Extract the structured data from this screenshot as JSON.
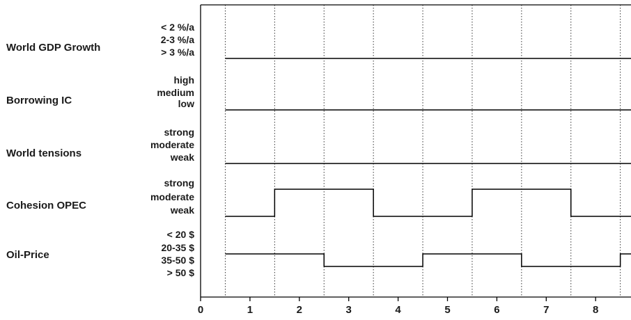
{
  "chart_data": {
    "type": "line",
    "title": "",
    "xlabel": "",
    "ylabel": "",
    "xlim": [
      0,
      8.75
    ],
    "x_ticks": [
      0,
      1,
      2,
      3,
      4,
      5,
      6,
      7,
      8
    ],
    "x_tick_labels": [
      "0",
      "1",
      "2",
      "3",
      "4",
      "5",
      "6",
      "7",
      "8"
    ],
    "vertical_gridlines_at": [
      0.5,
      1.5,
      2.5,
      3.5,
      4.5,
      5.5,
      6.5,
      7.5,
      8.5
    ],
    "grid_style": "dotted vertical",
    "step_interpretation": "each variable holds a state over intervals centered on integers; state changes occur at half-integer boundaries",
    "series": [
      {
        "name": "World GDP Growth",
        "states": [
          "< 2 %/a",
          "2-3 %/a",
          "> 3 %/a"
        ],
        "x_start": 0.5,
        "x_end": 8.75,
        "steps": [
          {
            "x": [
              0.5,
              8.75
            ],
            "state": "> 3 %/a"
          }
        ]
      },
      {
        "name": "Borrowing IC",
        "states": [
          "high",
          "medium",
          "low"
        ],
        "x_start": 0.5,
        "x_end": 8.75,
        "steps": [
          {
            "x": [
              0.5,
              8.75
            ],
            "state": "low"
          }
        ]
      },
      {
        "name": "World tensions",
        "states": [
          "strong",
          "moderate",
          "weak"
        ],
        "x_start": 0.5,
        "x_end": 8.75,
        "steps": [
          {
            "x": [
              0.5,
              8.75
            ],
            "state": "weak"
          }
        ]
      },
      {
        "name": "Cohesion OPEC",
        "states": [
          "strong",
          "moderate",
          "weak"
        ],
        "x_start": 0.5,
        "x_end": 8.75,
        "steps": [
          {
            "x": [
              0.5,
              1.5
            ],
            "state": "weak"
          },
          {
            "x": [
              1.5,
              3.5
            ],
            "state": "strong"
          },
          {
            "x": [
              3.5,
              5.5
            ],
            "state": "weak"
          },
          {
            "x": [
              5.5,
              7.5
            ],
            "state": "strong"
          },
          {
            "x": [
              7.5,
              8.75
            ],
            "state": "weak"
          }
        ]
      },
      {
        "name": "Oil-Price",
        "states": [
          "< 20 $",
          "20-35 $",
          "35-50 $",
          "> 50 $"
        ],
        "x_start": 0.5,
        "x_end": 8.75,
        "steps": [
          {
            "x": [
              0.5,
              2.5
            ],
            "state": "20-35 $"
          },
          {
            "x": [
              2.5,
              4.5
            ],
            "state": "35-50 $"
          },
          {
            "x": [
              4.5,
              6.5
            ],
            "state": "20-35 $"
          },
          {
            "x": [
              6.5,
              8.5
            ],
            "state": "35-50 $"
          },
          {
            "x": [
              8.5,
              8.75
            ],
            "state": "20-35 $"
          }
        ]
      }
    ]
  }
}
